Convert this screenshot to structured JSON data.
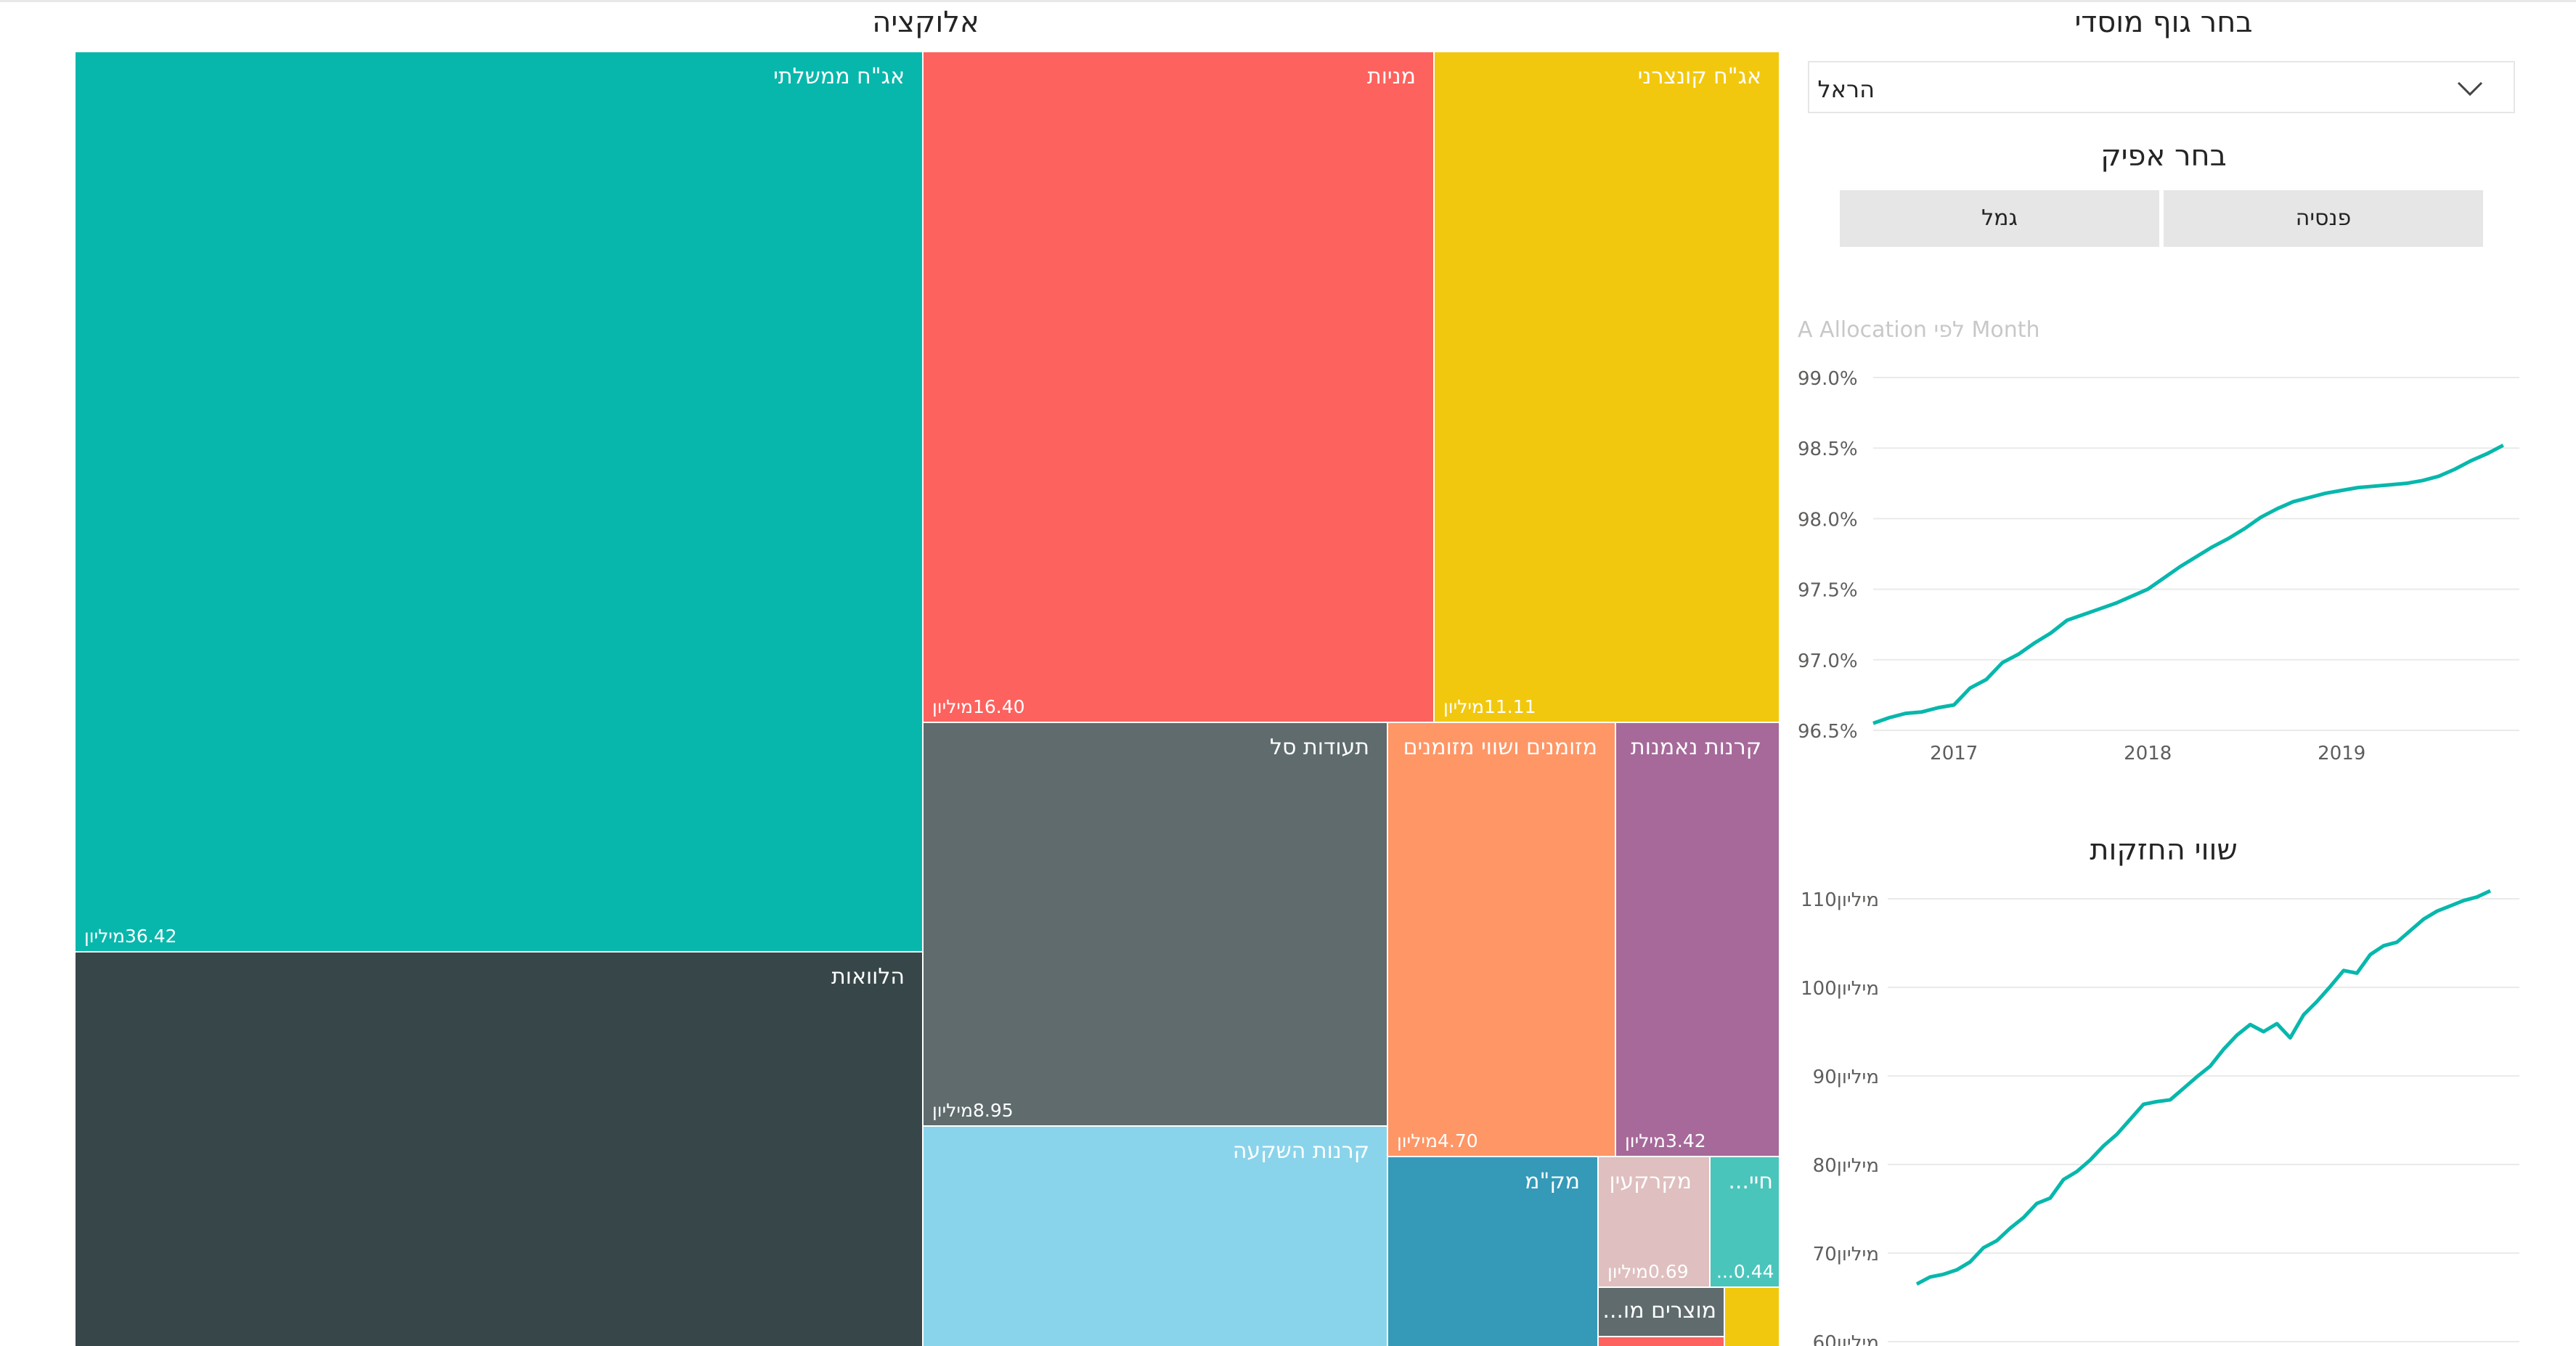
{
  "allocation_title": "אלוקציה",
  "treemap": [
    {
      "name": "אג\"ח ממשלתי",
      "value": "36.42מיליון",
      "color": "#08B7AC"
    },
    {
      "name": "מניות",
      "value": "16.40מיליון",
      "color": "#FD625E"
    },
    {
      "name": "אג\"ח קונצרני",
      "value": "11.11מיליון",
      "color": "#F2C80F"
    },
    {
      "name": "הלוואות",
      "value": "",
      "color": "#374649"
    },
    {
      "name": "תעודות סל",
      "value": "8.95מיליון",
      "color": "#5F6B6D"
    },
    {
      "name": "מזומנים ושווי מזומנים",
      "value": "4.70מיליון",
      "color": "#FE9666"
    },
    {
      "name": "קרנות נאמנות",
      "value": "3.42מיליון",
      "color": "#A66999"
    },
    {
      "name": "קרנות השקעה",
      "value": "",
      "color": "#8AD4EB"
    },
    {
      "name": "מק\"מ",
      "value": "",
      "color": "#3599B8"
    },
    {
      "name": "מקרקעין",
      "value": "0.69מיליון",
      "color": "#DFBFBF"
    },
    {
      "name": "חיי...",
      "value": "0.44...",
      "color": "#4AC5BB"
    },
    {
      "name": "מוצרים מו...",
      "value": "",
      "color": "#5F6B6D"
    },
    {
      "name": "",
      "value": "",
      "color": "#F2C80F"
    },
    {
      "name": "",
      "value": "",
      "color": "#FD625E"
    }
  ],
  "institution_slicer": {
    "title": "בחר גוף מוסדי",
    "selected": "הראל",
    "icon": "chevron-down-icon"
  },
  "channel_slicer": {
    "title": "בחר אפיק",
    "options": [
      "פנסיה",
      "גמל"
    ]
  },
  "chart_data": [
    {
      "type": "line",
      "title": "A Allocation לפי Month",
      "xlabel": "",
      "ylabel": "",
      "x_ticks": [
        "2017",
        "2018",
        "2019"
      ],
      "y_ticks": [
        "99.0%",
        "98.5%",
        "98.0%",
        "97.5%",
        "97.0%",
        "96.5%"
      ],
      "ylim": [
        96.5,
        99.0
      ],
      "xlim": [
        "2016-08",
        "2019-12"
      ],
      "grid": true,
      "color": "#08B7AC",
      "x": [
        "2016-08",
        "2016-09",
        "2016-10",
        "2016-11",
        "2016-12",
        "2017-01",
        "2017-02",
        "2017-03",
        "2017-04",
        "2017-05",
        "2017-06",
        "2017-07",
        "2017-08",
        "2017-09",
        "2017-10",
        "2017-11",
        "2017-12",
        "2018-01",
        "2018-02",
        "2018-03",
        "2018-04",
        "2018-05",
        "2018-06",
        "2018-07",
        "2018-08",
        "2018-09",
        "2018-10",
        "2018-11",
        "2018-12",
        "2019-01",
        "2019-02",
        "2019-03",
        "2019-04",
        "2019-05",
        "2019-06",
        "2019-07",
        "2019-08",
        "2019-09",
        "2019-10",
        "2019-11"
      ],
      "y": [
        96.55,
        96.59,
        96.62,
        96.63,
        96.66,
        96.68,
        96.8,
        96.86,
        96.98,
        97.04,
        97.12,
        97.19,
        97.28,
        97.32,
        97.36,
        97.4,
        97.45,
        97.5,
        97.58,
        97.66,
        97.73,
        97.8,
        97.86,
        97.93,
        98.01,
        98.07,
        98.12,
        98.15,
        98.18,
        98.2,
        98.22,
        98.23,
        98.24,
        98.25,
        98.27,
        98.3,
        98.35,
        98.41,
        98.46,
        98.52
      ]
    },
    {
      "type": "line",
      "title": "שווי החזקות",
      "xlabel": "",
      "ylabel": "",
      "y_ticks": [
        "110מיליון",
        "100מיליון",
        "90מיליון",
        "80מיליון",
        "70מיליון",
        "60מיליון"
      ],
      "ylim": [
        60,
        110
      ],
      "grid": true,
      "color": "#08B7AC",
      "x": [
        "1",
        "2",
        "3",
        "4",
        "5",
        "6",
        "7",
        "8",
        "9",
        "10",
        "11",
        "12",
        "13",
        "14",
        "15",
        "16",
        "17",
        "18",
        "19",
        "20",
        "21",
        "22",
        "23",
        "24",
        "25",
        "26",
        "27",
        "28",
        "29",
        "30",
        "31",
        "32",
        "33",
        "34",
        "35",
        "36",
        "37",
        "38",
        "39",
        "40",
        "41",
        "42",
        "43",
        "44"
      ],
      "y": [
        66.5,
        67.3,
        67.6,
        68.1,
        69.0,
        70.6,
        71.4,
        72.8,
        74.0,
        75.6,
        76.2,
        78.3,
        79.2,
        80.5,
        82.1,
        83.4,
        85.1,
        86.8,
        87.1,
        87.3,
        88.6,
        89.9,
        91.1,
        93.0,
        94.6,
        95.8,
        95.0,
        95.9,
        94.3,
        96.9,
        98.4,
        100.1,
        101.9,
        101.6,
        103.7,
        104.7,
        105.1,
        106.4,
        107.7,
        108.6,
        109.2,
        109.8,
        110.2,
        110.9
      ]
    }
  ]
}
